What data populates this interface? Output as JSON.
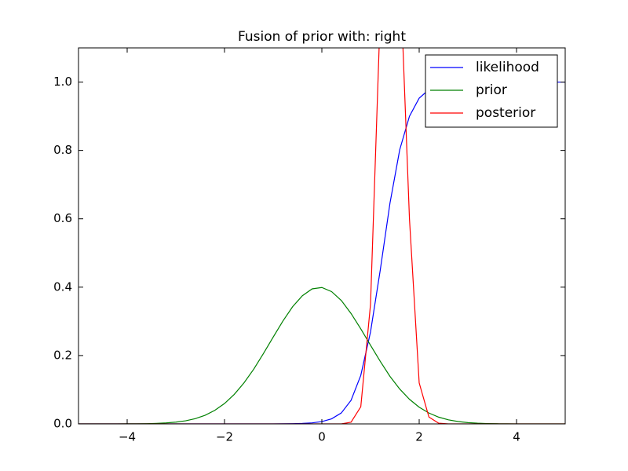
{
  "chart_data": {
    "type": "line",
    "title": "Fusion of prior with: right",
    "x": [
      -5,
      -4.8,
      -4.6,
      -4.4,
      -4.2,
      -4,
      -3.8,
      -3.6,
      -3.4,
      -3.2,
      -3,
      -2.8,
      -2.6,
      -2.4,
      -2.2,
      -2,
      -1.8,
      -1.6,
      -1.4,
      -1.2,
      -1,
      -0.8,
      -0.6,
      -0.4,
      -0.2,
      0,
      0.2,
      0.4,
      0.6,
      0.8,
      1,
      1.2,
      1.4,
      1.6,
      1.8,
      2,
      2.2,
      2.4,
      2.6,
      2.8,
      3,
      3.2,
      3.4,
      3.6,
      3.8,
      4,
      4.2,
      4.4,
      4.6,
      4.8,
      5
    ],
    "series": [
      {
        "name": "likelihood",
        "color": "#0000ff",
        "values": [
          0,
          0,
          0,
          0,
          0,
          0,
          0,
          0,
          0,
          0,
          0,
          0,
          0,
          0,
          0,
          0,
          0,
          0,
          0,
          0,
          0,
          0.0003,
          0.0006,
          0.0014,
          0.003,
          0.0067,
          0.0148,
          0.032,
          0.069,
          0.142,
          0.269,
          0.45,
          0.646,
          0.802,
          0.9,
          0.953,
          0.978,
          0.99,
          0.9955,
          0.998,
          0.999,
          1,
          1,
          1,
          1,
          1,
          1,
          1,
          1,
          1,
          1
        ]
      },
      {
        "name": "prior",
        "color": "#008000",
        "values": [
          0,
          0,
          0,
          0,
          0.0001,
          0.0002,
          0.0004,
          0.0007,
          0.0015,
          0.0028,
          0.0051,
          0.0091,
          0.0154,
          0.0252,
          0.0396,
          0.0596,
          0.0863,
          0.12,
          0.16,
          0.206,
          0.254,
          0.301,
          0.343,
          0.375,
          0.395,
          0.399,
          0.387,
          0.361,
          0.323,
          0.278,
          0.23,
          0.183,
          0.139,
          0.102,
          0.072,
          0.0488,
          0.0318,
          0.0198,
          0.0119,
          0.0069,
          0.0038,
          0.002,
          0.001,
          0.0005,
          0.0002,
          0.0001,
          0,
          0,
          0,
          0,
          0
        ]
      },
      {
        "name": "posterior",
        "color": "#ff0000",
        "values": [
          0,
          0,
          0,
          0,
          0,
          0,
          0,
          0,
          0,
          0,
          0,
          0,
          0,
          0,
          0,
          0,
          0,
          0,
          0,
          0,
          0,
          0,
          0,
          0,
          0,
          0,
          0,
          0,
          0.005,
          0.05,
          0.35,
          1.2,
          1.45,
          1.35,
          0.6,
          0.12,
          0.02,
          0.002,
          0,
          0,
          0,
          0,
          0,
          0,
          0,
          0,
          0,
          0,
          0,
          0,
          0
        ]
      }
    ],
    "xlim": [
      -5,
      5
    ],
    "xticks": [
      {
        "value": -4,
        "label": "−4"
      },
      {
        "value": -2,
        "label": "−2"
      },
      0,
      2,
      4
    ],
    "ylim": [
      0,
      1.1
    ],
    "yticks": [
      {
        "value": 0,
        "label": "0.0"
      },
      {
        "value": 0.2,
        "label": "0.2"
      },
      {
        "value": 0.4,
        "label": "0.4"
      },
      {
        "value": 0.6,
        "label": "0.6"
      },
      {
        "value": 0.8,
        "label": "0.8"
      },
      {
        "value": 1,
        "label": "1.0"
      }
    ],
    "legend": "upper right"
  }
}
